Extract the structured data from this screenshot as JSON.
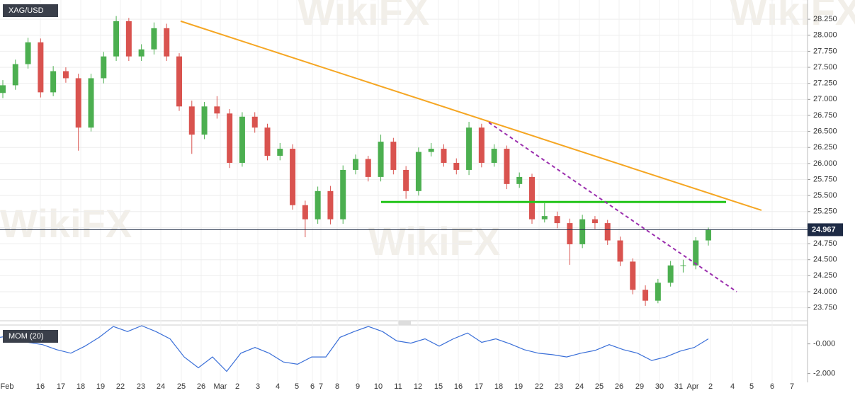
{
  "chart_data": [
    {
      "type": "candlestick",
      "title": "XAG/USD",
      "watermark": "WikiFX",
      "open": [
        27.1,
        27.22,
        27.55,
        27.89,
        27.11,
        27.44,
        27.33,
        26.56,
        27.33,
        27.67,
        28.22,
        27.67,
        27.78,
        28.11,
        27.67,
        26.89,
        26.45,
        26.89,
        26.78,
        26.01,
        26.73,
        26.56,
        26.12,
        26.23,
        25.35,
        25.13,
        25.57,
        25.13,
        25.9,
        26.07,
        25.79,
        26.34,
        25.9,
        25.57,
        26.18,
        26.23,
        26.01,
        25.9,
        26.56,
        26.01,
        26.23,
        25.68,
        25.79,
        25.13,
        25.18,
        25.07,
        24.74,
        25.13,
        25.07,
        24.8,
        24.47,
        24.03,
        23.86,
        24.14,
        24.41,
        24.41,
        24.8
      ],
      "high": [
        27.3,
        27.62,
        27.96,
        27.95,
        27.52,
        27.5,
        27.4,
        27.4,
        27.74,
        28.3,
        28.27,
        27.86,
        28.2,
        28.18,
        27.72,
        26.98,
        26.96,
        27.05,
        26.85,
        26.8,
        26.8,
        26.62,
        26.32,
        26.3,
        25.42,
        25.64,
        25.65,
        25.97,
        26.14,
        26.12,
        26.45,
        26.4,
        25.96,
        26.25,
        26.32,
        26.3,
        26.08,
        26.65,
        26.62,
        26.3,
        26.28,
        25.86,
        25.84,
        25.38,
        25.25,
        25.14,
        25.2,
        25.18,
        25.12,
        24.86,
        24.52,
        24.1,
        24.2,
        24.48,
        24.5,
        24.85,
        25.0
      ],
      "low": [
        27.02,
        27.15,
        27.48,
        27.03,
        27.05,
        27.26,
        26.2,
        26.5,
        27.25,
        27.6,
        27.6,
        27.6,
        27.7,
        27.6,
        26.82,
        26.15,
        26.38,
        26.7,
        25.93,
        25.95,
        26.48,
        26.05,
        26.05,
        25.28,
        24.85,
        25.06,
        25.05,
        25.06,
        25.83,
        25.72,
        25.72,
        25.83,
        25.45,
        25.5,
        26.11,
        25.95,
        25.83,
        25.82,
        25.94,
        25.95,
        25.6,
        25.62,
        25.06,
        25.08,
        24.99,
        24.42,
        24.68,
        24.98,
        24.73,
        24.4,
        23.96,
        23.78,
        23.82,
        24.08,
        24.3,
        24.35,
        24.72
      ],
      "close": [
        27.22,
        27.55,
        27.89,
        27.11,
        27.44,
        27.33,
        26.56,
        27.33,
        27.67,
        28.22,
        27.67,
        27.78,
        28.11,
        27.67,
        26.89,
        26.45,
        26.89,
        26.78,
        26.01,
        26.73,
        26.56,
        26.12,
        26.23,
        25.35,
        25.13,
        25.57,
        25.13,
        25.9,
        26.07,
        25.79,
        26.34,
        25.9,
        25.57,
        26.18,
        26.23,
        26.01,
        25.9,
        26.56,
        26.01,
        26.23,
        25.68,
        25.79,
        25.13,
        25.18,
        25.07,
        24.74,
        25.13,
        25.07,
        24.8,
        24.47,
        24.03,
        23.86,
        24.14,
        24.41,
        24.41,
        24.8,
        24.967
      ],
      "up_color": "#4caf50",
      "down_color": "#d9534f",
      "ylim": [
        23.58,
        28.55
      ],
      "yticks": [
        {
          "value": 23.75,
          "label": "23.750"
        },
        {
          "value": 24,
          "label": "24.000"
        },
        {
          "value": 24.25,
          "label": "24.250"
        },
        {
          "value": 24.5,
          "label": "24.500"
        },
        {
          "value": 24.75,
          "label": "24.750"
        },
        {
          "value": 25,
          "label": "25.000"
        },
        {
          "value": 25.25,
          "label": "25.250"
        },
        {
          "value": 25.5,
          "label": "25.500"
        },
        {
          "value": 25.75,
          "label": "25.750"
        },
        {
          "value": 26,
          "label": "26.000"
        },
        {
          "value": 26.25,
          "label": "26.250"
        },
        {
          "value": 26.5,
          "label": "26.500"
        },
        {
          "value": 26.75,
          "label": "26.750"
        },
        {
          "value": 27,
          "label": "27.000"
        },
        {
          "value": 27.25,
          "label": "27.250"
        },
        {
          "value": 27.5,
          "label": "27.500"
        },
        {
          "value": 27.75,
          "label": "27.750"
        },
        {
          "value": 28,
          "label": "28.000"
        },
        {
          "value": 28.25,
          "label": "28.250"
        }
      ],
      "grid": true,
      "last_price": 24.967,
      "last_price_color": "#1e2b45",
      "date_labels": [
        "Feb",
        "16",
        "17",
        "18",
        "19",
        "22",
        "23",
        "24",
        "25",
        "26",
        "Mar",
        "2",
        "3",
        "4",
        "5",
        "6",
        "7",
        "8",
        "9",
        "10",
        "11",
        "12",
        "15",
        "16",
        "17",
        "18",
        "19",
        "22",
        "23",
        "24",
        "25",
        "26",
        "29",
        "30",
        "31",
        "Apr",
        "2",
        "4",
        "5",
        "6",
        "7"
      ],
      "trendlines": [
        {
          "start": 28.22,
          "end": 25.27,
          "color": "#f5a623",
          "dashed": false
        },
        {
          "start": 25.4,
          "end": 25.4,
          "color": "#22c41a",
          "dashed": false
        },
        {
          "start": 26.64,
          "end": 24.0,
          "color": "#9b2fae",
          "dashed": true
        }
      ]
    },
    {
      "type": "line",
      "title": "MOM (20)",
      "color": "#3a6fd8",
      "values": [
        0.44,
        0.59,
        0.1,
        -0.05,
        -0.39,
        -0.63,
        -0.15,
        0.44,
        1.17,
        0.83,
        1.22,
        0.83,
        0.34,
        -0.88,
        -1.61,
        -0.88,
        -1.85,
        -0.63,
        -0.24,
        -0.63,
        -1.22,
        -1.37,
        -0.88,
        -0.88,
        0.44,
        0.83,
        1.17,
        0.83,
        0.2,
        0.05,
        0.34,
        -0.15,
        0.34,
        0.73,
        0.1,
        0.34,
        0,
        -0.39,
        -0.63,
        -0.73,
        -0.88,
        -0.63,
        -0.44,
        -0.05,
        -0.39,
        -0.63,
        -1.12,
        -0.88,
        -0.49,
        -0.24,
        0.34
      ],
      "ylim": [
        -2.59,
        1.22
      ],
      "yticks": [
        {
          "value": 0,
          "label": "-0.000"
        },
        {
          "value": -2,
          "label": "-2.000"
        }
      ]
    }
  ]
}
